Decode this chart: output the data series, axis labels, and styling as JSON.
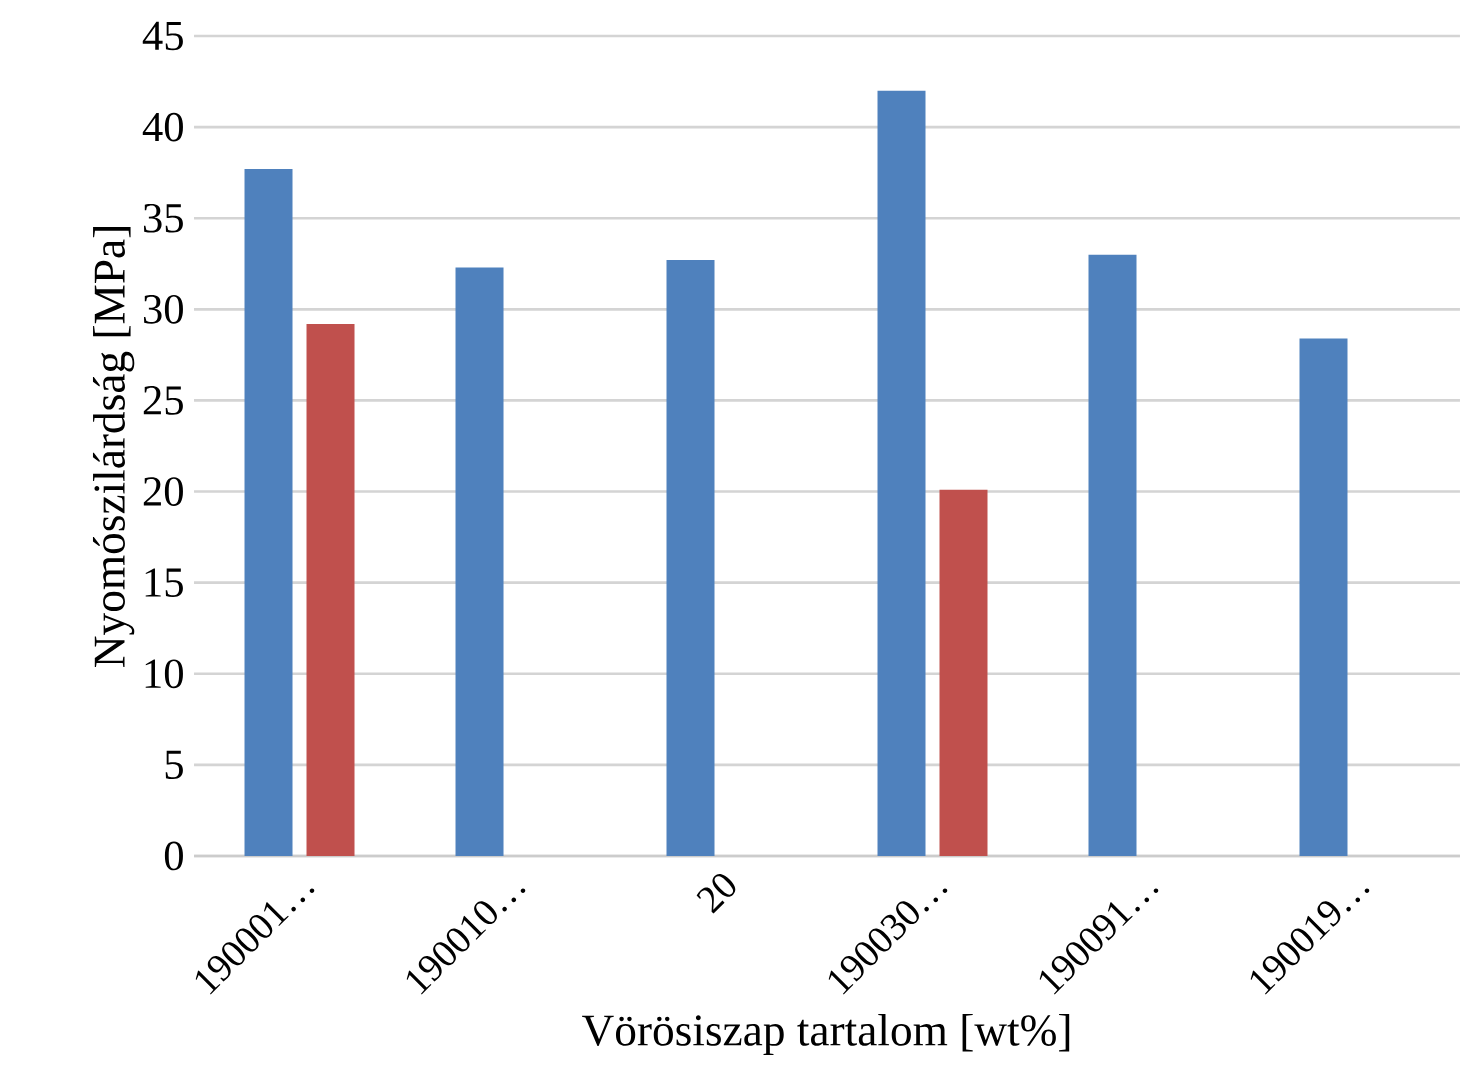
{
  "chart_data": {
    "type": "bar",
    "xlabel": "Vörösiszap tartalom [wt%]",
    "ylabel": "Nyomószilárdság [MPa]",
    "categories": [
      "190001…",
      "190010…",
      "20",
      "190030…",
      "190091…",
      "190019…"
    ],
    "series": [
      {
        "color": "#4f81bd",
        "values": [
          37.7,
          32.3,
          32.7,
          42.0,
          33.0,
          28.4
        ]
      },
      {
        "color": "#c0504d",
        "values": [
          29.2,
          null,
          null,
          20.1,
          null,
          null
        ]
      }
    ],
    "ylim": [
      0,
      45
    ],
    "yticks": [
      0,
      5,
      10,
      15,
      20,
      25,
      30,
      35,
      40,
      45
    ],
    "grid": "y",
    "legend": false
  }
}
